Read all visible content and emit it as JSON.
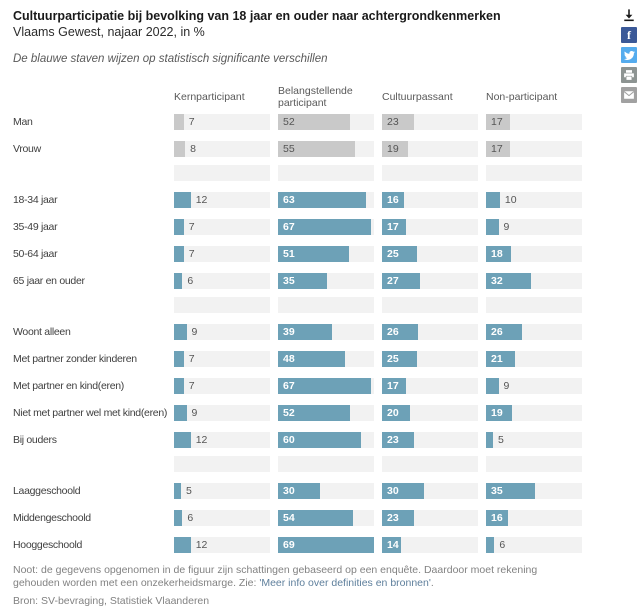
{
  "header": {
    "title": "Cultuurparticipatie bij bevolking van 18 jaar en ouder naar achtergrondkenmerken",
    "subtitle": "Vlaams Gewest, najaar 2022, in %",
    "note_italic": "De blauwe staven wijzen op statistisch significante verschillen"
  },
  "share": {
    "items": [
      {
        "name": "download-icon",
        "bg": "#ffffff",
        "fg": "#1a1a1a"
      },
      {
        "name": "facebook-icon",
        "glyph": "f",
        "bg": "#3b5998",
        "fg": "#ffffff"
      },
      {
        "name": "twitter-icon",
        "bg": "#55acee",
        "fg": "#ffffff"
      },
      {
        "name": "print-icon",
        "bg": "#8d9492",
        "fg": "#ffffff"
      },
      {
        "name": "email-icon",
        "bg": "#a1a1a1",
        "fg": "#ffffff"
      }
    ]
  },
  "chart_data": {
    "type": "bar",
    "orientation": "horizontal",
    "title": "Cultuurparticipatie bij bevolking van 18 jaar en ouder naar achtergrondkenmerken",
    "subtitle": "Vlaams Gewest, najaar 2022, in %",
    "unit": "%",
    "xlim": [
      0,
      69
    ],
    "grid": false,
    "columns": [
      "Kernparticipant",
      "Belangstellende participant",
      "Cultuurpassant",
      "Non-participant"
    ],
    "colors": {
      "significant": "#6da1b7",
      "not_significant": "#c9c9c9",
      "track": "#f2f2f2",
      "value_inside_blue": "#ffffff",
      "value_default": "#555555"
    },
    "groups": [
      {
        "name": "geslacht",
        "color": "#c9c9c9",
        "significant": false,
        "rows": [
          {
            "label": "Man",
            "values": [
              7,
              52,
              23,
              17
            ]
          },
          {
            "label": "Vrouw",
            "values": [
              8,
              55,
              19,
              17
            ]
          }
        ]
      },
      {
        "name": "leeftijd",
        "color": "#6da1b7",
        "significant": true,
        "rows": [
          {
            "label": "18-34 jaar",
            "values": [
              12,
              63,
              16,
              10
            ]
          },
          {
            "label": "35-49 jaar",
            "values": [
              7,
              67,
              17,
              9
            ]
          },
          {
            "label": "50-64 jaar",
            "values": [
              7,
              51,
              25,
              18
            ]
          },
          {
            "label": "65 jaar en ouder",
            "values": [
              6,
              35,
              27,
              32
            ]
          }
        ]
      },
      {
        "name": "huishouden",
        "color": "#6da1b7",
        "significant": true,
        "rows": [
          {
            "label": "Woont alleen",
            "values": [
              9,
              39,
              26,
              26
            ]
          },
          {
            "label": "Met partner zonder kinderen",
            "values": [
              7,
              48,
              25,
              21
            ]
          },
          {
            "label": "Met partner en kind(eren)",
            "values": [
              7,
              67,
              17,
              9
            ]
          },
          {
            "label": "Niet met partner wel met kind(eren)",
            "values": [
              9,
              52,
              20,
              19
            ]
          },
          {
            "label": "Bij ouders",
            "values": [
              12,
              60,
              23,
              5
            ]
          }
        ]
      },
      {
        "name": "opleiding",
        "color": "#6da1b7",
        "significant": true,
        "rows": [
          {
            "label": "Laaggeschoold",
            "values": [
              5,
              30,
              30,
              35
            ]
          },
          {
            "label": "Middengeschoold",
            "values": [
              6,
              54,
              23,
              16
            ]
          },
          {
            "label": "Hooggeschoold",
            "values": [
              12,
              69,
              14,
              6
            ]
          }
        ]
      }
    ]
  },
  "footer": {
    "note_prefix": "Noot: de gegevens opgenomen in de figuur zijn schattingen gebaseerd op een enquête. Daardoor moet rekening gehouden worden met een onzekerheidsmarge. Zie: ",
    "note_link": "'Meer info over definities en bronnen'",
    "note_suffix": ".",
    "source": "Bron: SV-bevraging, Statistiek Vlaanderen"
  }
}
